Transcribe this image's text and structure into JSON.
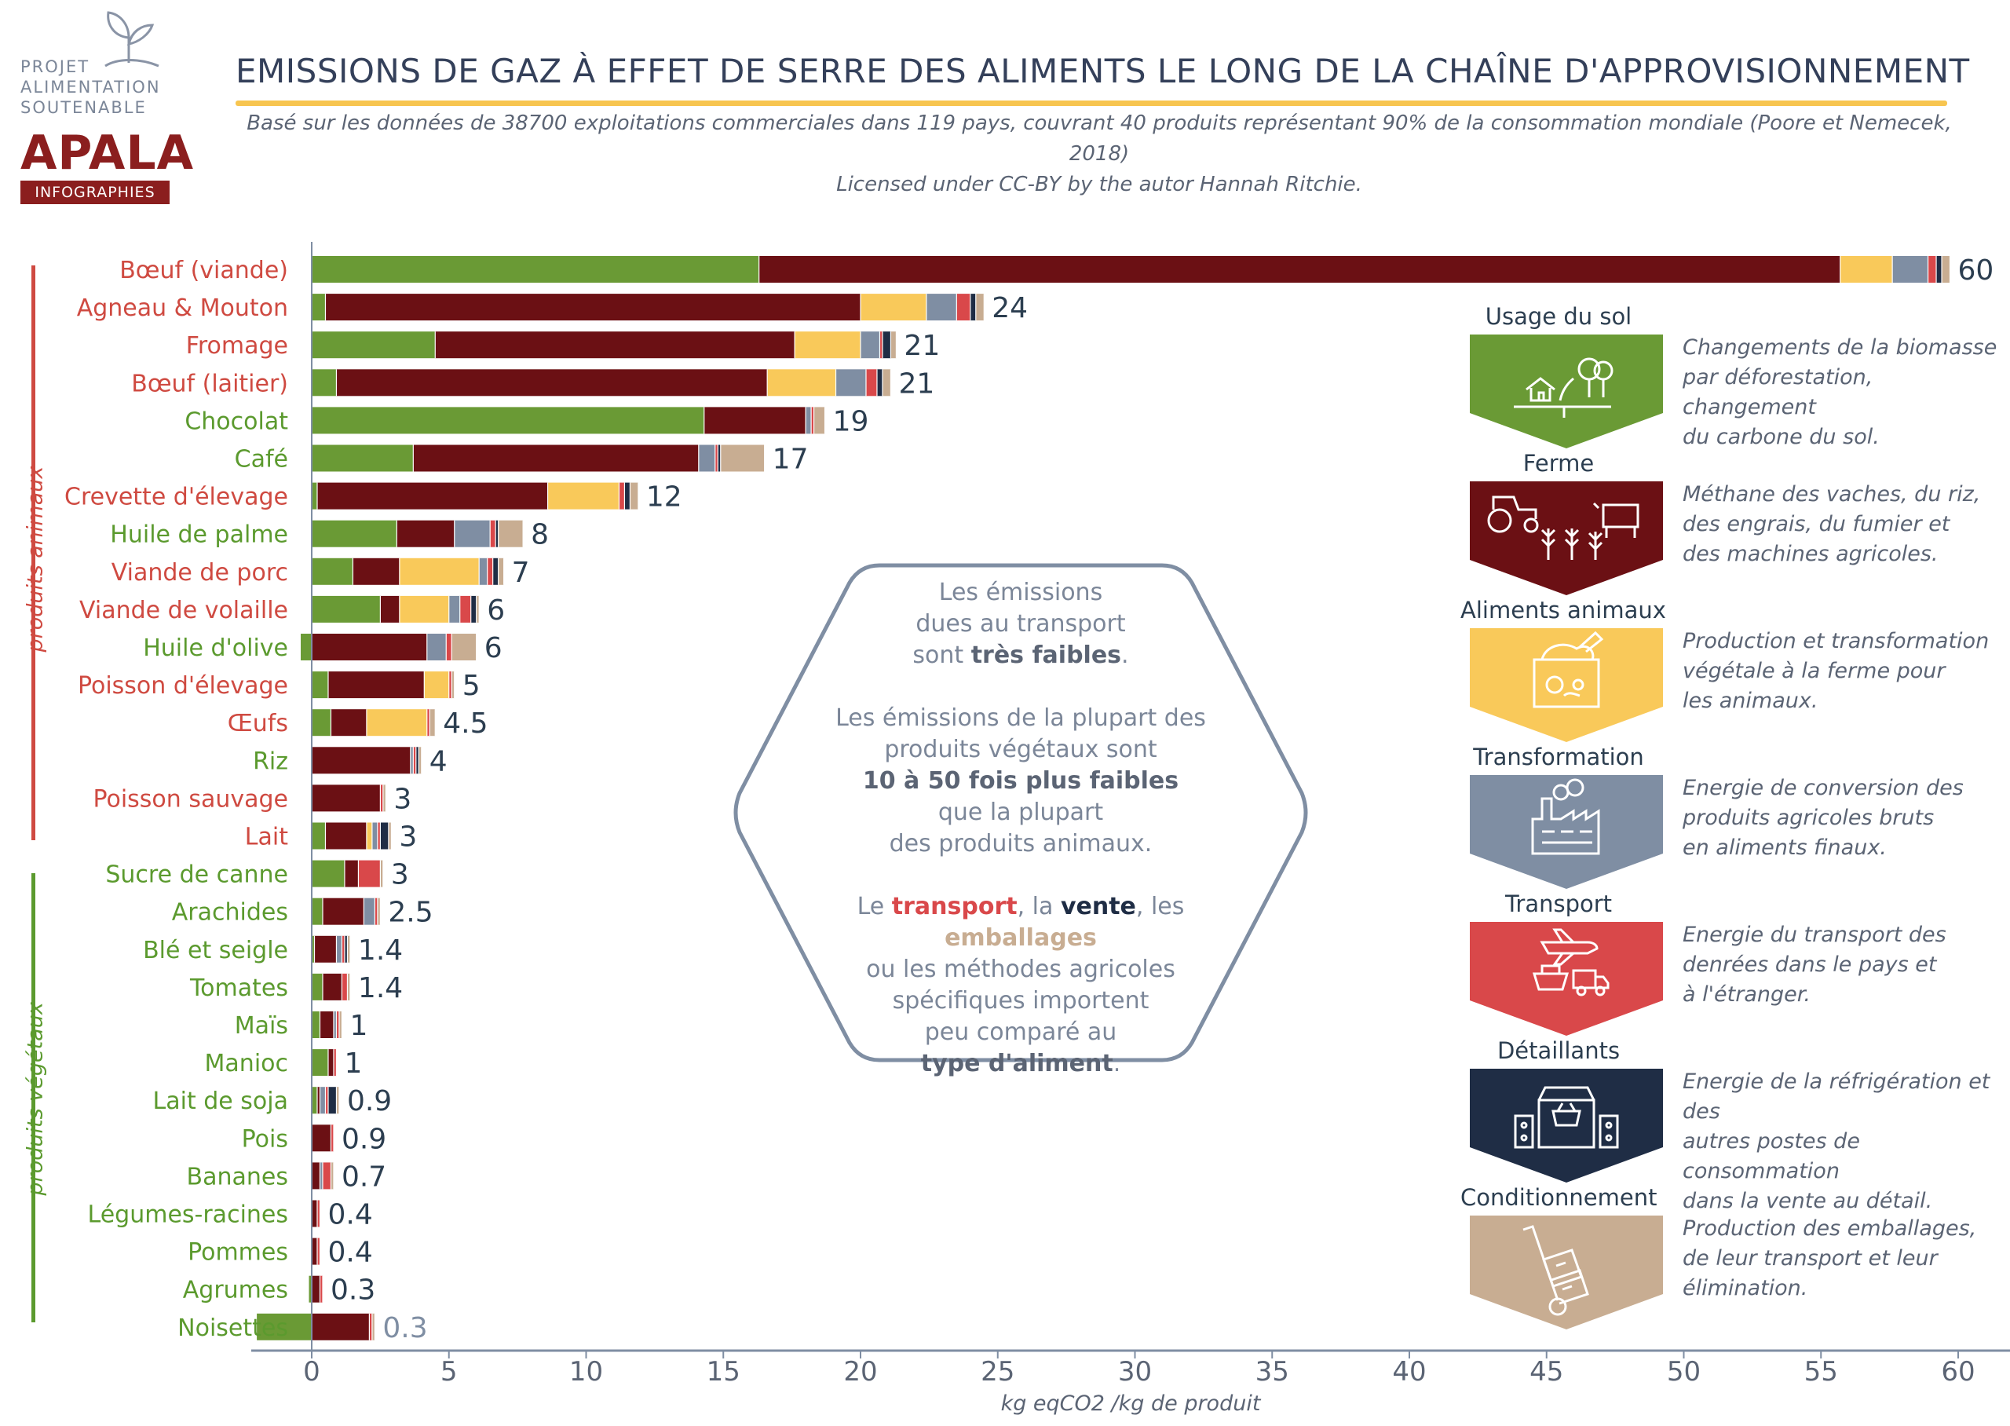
{
  "logo": {
    "line1": "PROJET",
    "line2": "ALIMENTATION",
    "line3": "SOUTENABLE",
    "brand": "APALA",
    "tag": "INFOGRAPHIES"
  },
  "header": {
    "title": "EMISSIONS DE GAZ À EFFET DE SERRE DES ALIMENTS LE LONG DE LA CHAÎNE D'APPROVISIONNEMENT",
    "subtitle_line1": "Basé sur les données de 38700 exploitations commerciales dans 119 pays, couvrant 40 produits représentant 90% de la consommation mondiale (Poore et Nemecek, 2018)",
    "subtitle_line2": "Licensed under CC-BY by the autor Hannah Ritchie."
  },
  "side_labels": {
    "animal": "produits animaux",
    "vegetal": "produits végétaux"
  },
  "colors": {
    "land_use": "#6a9a35",
    "farm": "#6b1014",
    "animal_feed": "#f9c95a",
    "processing": "#7f8ea3",
    "transport": "#d9484a",
    "retail": "#1f2d45",
    "packaging": "#c8ad92",
    "animal_label": "#cf4a41",
    "vegetal_label": "#5b9a2e"
  },
  "chart_data": {
    "type": "bar",
    "orientation": "horizontal",
    "stacked": true,
    "xlabel": "kg eqCO2 /kg de produit",
    "xlim": [
      -2,
      61
    ],
    "xticks": [
      0,
      5,
      10,
      15,
      20,
      25,
      30,
      35,
      40,
      45,
      50,
      55,
      60
    ],
    "grid": false,
    "series_names": [
      "Usage du sol",
      "Ferme",
      "Aliments animaux",
      "Transformation",
      "Transport",
      "Détaillants",
      "Conditionnement"
    ],
    "categories": [
      {
        "name": "Bœuf (viande)",
        "group": "animal",
        "total_label": "60",
        "values": [
          16.3,
          39.4,
          1.9,
          1.3,
          0.3,
          0.2,
          0.3
        ]
      },
      {
        "name": "Agneau & Mouton",
        "group": "animal",
        "total_label": "24",
        "values": [
          0.5,
          19.5,
          2.4,
          1.1,
          0.5,
          0.2,
          0.3
        ]
      },
      {
        "name": "Fromage",
        "group": "animal",
        "total_label": "21",
        "values": [
          4.5,
          13.1,
          2.4,
          0.7,
          0.1,
          0.3,
          0.2
        ]
      },
      {
        "name": "Bœuf (laitier)",
        "group": "animal",
        "total_label": "21",
        "values": [
          0.9,
          15.7,
          2.5,
          1.1,
          0.4,
          0.2,
          0.3
        ]
      },
      {
        "name": "Chocolat",
        "group": "vegetal",
        "total_label": "19",
        "values": [
          14.3,
          3.7,
          0,
          0.2,
          0.1,
          0,
          0.4
        ]
      },
      {
        "name": "Café",
        "group": "vegetal",
        "total_label": "17",
        "values": [
          3.7,
          10.4,
          0,
          0.6,
          0.1,
          0.1,
          1.6
        ]
      },
      {
        "name": "Crevette d'élevage",
        "group": "animal",
        "total_label": "12",
        "values": [
          0.2,
          8.4,
          2.6,
          0,
          0.2,
          0.2,
          0.3
        ]
      },
      {
        "name": "Huile de palme",
        "group": "vegetal",
        "total_label": "8",
        "values": [
          3.1,
          2.1,
          0,
          1.3,
          0.2,
          0.1,
          0.9
        ]
      },
      {
        "name": "Viande de porc",
        "group": "animal",
        "total_label": "7",
        "values": [
          1.5,
          1.7,
          2.9,
          0.3,
          0.2,
          0.2,
          0.2
        ]
      },
      {
        "name": "Viande de volaille",
        "group": "animal",
        "total_label": "6",
        "values": [
          2.5,
          0.7,
          1.8,
          0.4,
          0.4,
          0.2,
          0.1
        ]
      },
      {
        "name": "Huile d'olive",
        "group": "vegetal",
        "total_label": "6",
        "values": [
          -0.4,
          4.2,
          0,
          0.7,
          0.2,
          0,
          0.9
        ]
      },
      {
        "name": "Poisson d'élevage",
        "group": "animal",
        "total_label": "5",
        "values": [
          0.6,
          3.5,
          0.9,
          0,
          0.1,
          0,
          0.1
        ]
      },
      {
        "name": "Œufs",
        "group": "animal",
        "total_label": "4.5",
        "values": [
          0.7,
          1.3,
          2.2,
          0,
          0.1,
          0,
          0.2
        ]
      },
      {
        "name": "Riz",
        "group": "vegetal",
        "total_label": "4",
        "values": [
          0,
          3.6,
          0,
          0.1,
          0.1,
          0.1,
          0.1
        ]
      },
      {
        "name": "Poisson sauvage",
        "group": "animal",
        "total_label": "3",
        "values": [
          0,
          2.5,
          0,
          0,
          0.1,
          0,
          0.1
        ]
      },
      {
        "name": "Lait",
        "group": "animal",
        "total_label": "3",
        "values": [
          0.5,
          1.5,
          0.2,
          0.2,
          0.1,
          0.3,
          0.1
        ]
      },
      {
        "name": "Sucre de canne",
        "group": "vegetal",
        "total_label": "3",
        "values": [
          1.2,
          0.5,
          0,
          0,
          0.8,
          0,
          0.1
        ]
      },
      {
        "name": "Arachides",
        "group": "vegetal",
        "total_label": "2.5",
        "values": [
          0.4,
          1.5,
          0,
          0.4,
          0.1,
          0,
          0.1
        ]
      },
      {
        "name": "Blé et seigle",
        "group": "vegetal",
        "total_label": "1.4",
        "values": [
          0.1,
          0.8,
          0,
          0.2,
          0.1,
          0.1,
          0.1
        ]
      },
      {
        "name": "Tomates",
        "group": "vegetal",
        "total_label": "1.4",
        "values": [
          0.4,
          0.7,
          0,
          0,
          0.2,
          0,
          0.1
        ]
      },
      {
        "name": "Maïs",
        "group": "vegetal",
        "total_label": "1",
        "values": [
          0.3,
          0.5,
          0,
          0.1,
          0.1,
          0,
          0.1
        ]
      },
      {
        "name": "Manioc",
        "group": "vegetal",
        "total_label": "1",
        "values": [
          0.6,
          0.2,
          0,
          0,
          0.1,
          0,
          0
        ]
      },
      {
        "name": "Lait de soja",
        "group": "vegetal",
        "total_label": "0.9",
        "values": [
          0.2,
          0.1,
          0,
          0.2,
          0.1,
          0.3,
          0.1
        ]
      },
      {
        "name": "Pois",
        "group": "vegetal",
        "total_label": "0.9",
        "values": [
          0,
          0.7,
          0,
          0,
          0.1,
          0,
          0
        ]
      },
      {
        "name": "Bananes",
        "group": "vegetal",
        "total_label": "0.7",
        "values": [
          0,
          0.3,
          0,
          0.1,
          0.3,
          0,
          0.1
        ]
      },
      {
        "name": "Légumes-racines",
        "group": "vegetal",
        "total_label": "0.4",
        "values": [
          0,
          0.2,
          0,
          0,
          0.1,
          0,
          0
        ]
      },
      {
        "name": "Pommes",
        "group": "vegetal",
        "total_label": "0.4",
        "values": [
          0,
          0.2,
          0,
          0,
          0.1,
          0,
          0
        ]
      },
      {
        "name": "Agrumes",
        "group": "vegetal",
        "total_label": "0.3",
        "values": [
          -0.1,
          0.3,
          0,
          0,
          0.1,
          0,
          0
        ]
      },
      {
        "name": "Noisettes",
        "group": "vegetal",
        "total_label": "0.3",
        "values": [
          -2.0,
          2.1,
          0,
          0,
          0.1,
          0,
          0.1
        ]
      }
    ]
  },
  "note": {
    "p1_a": "Les émissions",
    "p1_b": "dues au transport",
    "p1_c": "sont ",
    "p1_strong": "très faibles",
    "p1_end": ".",
    "p2_a": "Les émissions de la plupart des",
    "p2_b": "produits végétaux sont",
    "p2_strong": "10 à 50 fois plus faibles",
    "p2_c": "que la plupart",
    "p2_d": "des produits animaux.",
    "p3_le": "Le ",
    "p3_transport": "transport",
    "p3_comma1": ", la ",
    "p3_vente": "vente",
    "p3_comma2": ", les ",
    "p3_emballages": "emballages",
    "p3_b": "ou les méthodes agricoles",
    "p3_c": "spécifiques importent",
    "p3_d": "peu comparé au",
    "p3_strong": "type d'aliment",
    "p3_end": "."
  },
  "legend": [
    {
      "title": "Usage du sol",
      "icon": "land-use-icon",
      "color": "#6a9a35",
      "desc": [
        "Changements de la biomasse",
        "par  déforestation, changement",
        "du carbone du sol."
      ]
    },
    {
      "title": "Ferme",
      "icon": "farm-icon",
      "color": "#6b1014",
      "desc": [
        "Méthane des vaches, du riz,",
        "des engrais, du fumier et",
        "des machines agricoles."
      ]
    },
    {
      "title": "Aliments animaux",
      "icon": "animal-feed-icon",
      "color": "#f9c95a",
      "desc": [
        "Production et transformation",
        "végétale à la ferme pour",
        "les animaux."
      ]
    },
    {
      "title": "Transformation",
      "icon": "factory-icon",
      "color": "#7f8ea3",
      "desc": [
        "Energie de conversion des",
        "produits agricoles bruts",
        "en aliments finaux."
      ]
    },
    {
      "title": "Transport",
      "icon": "transport-icon",
      "color": "#d9484a",
      "desc": [
        "Energie du transport des",
        "denrées dans le pays et",
        "à l'étranger."
      ]
    },
    {
      "title": "Détaillants",
      "icon": "store-icon",
      "color": "#1f2d45",
      "desc": [
        "Energie de la réfrigération et des",
        "autres postes de consommation",
        "dans la vente au détail."
      ]
    },
    {
      "title": "Conditionnement",
      "icon": "hand-truck-icon",
      "color": "#c8ad92",
      "desc": [
        "Production des emballages,",
        "de leur transport et leur",
        "élimination."
      ]
    }
  ]
}
